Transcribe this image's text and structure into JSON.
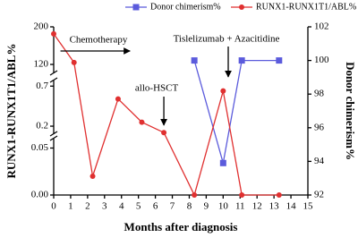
{
  "chart_data": {
    "type": "line",
    "xlabel": "Months after diagnosis",
    "ylabel": "RUNX1-RUNX1T1/ABL%",
    "y2label": "Donor chimerism%",
    "xlim": [
      0,
      15
    ],
    "xticks": [
      0,
      1,
      2,
      3,
      4,
      5,
      6,
      7,
      8,
      9,
      10,
      11,
      12,
      13,
      14,
      15
    ],
    "y_segments": [
      {
        "ylim": [
          0,
          0.06
        ],
        "yticks": [
          {
            "value": 0,
            "label": "0.00"
          },
          0.05
        ]
      },
      {
        "ylim": [
          0.1,
          0.77
        ],
        "yticks": [
          0.2,
          0.7
        ]
      },
      {
        "ylim": [
          101,
          200
        ],
        "yticks": [
          120,
          200
        ]
      }
    ],
    "y2lim": [
      92,
      102
    ],
    "y2ticks": [
      92,
      94,
      96,
      98,
      100,
      102
    ],
    "series": [
      {
        "name": "Donor chimerism%",
        "color": "#5b5bdc",
        "marker": "square",
        "axis": "y2",
        "x": [
          8.3,
          10,
          11.1,
          13.3
        ],
        "values": [
          100,
          93.9,
          100,
          100
        ]
      },
      {
        "name": "RUNX1-RUNX1T1/ABL%",
        "color": "#e03030",
        "marker": "circle",
        "x": [
          0,
          1.2,
          2.3,
          3.8,
          5.2,
          6.5,
          8.3,
          10,
          11.1,
          13.3
        ],
        "values": [
          185,
          124,
          0.02,
          0.54,
          0.25,
          0.12,
          0,
          0.64,
          0,
          0
        ]
      }
    ],
    "annotations": [
      {
        "text": "Chemotherapy",
        "x": 0.4,
        "x2": 4.5
      },
      {
        "text": "Tislelizumab + Azacitidine",
        "x": 10.3
      },
      {
        "text": "allo-HSCT",
        "x": 6.5
      }
    ]
  }
}
